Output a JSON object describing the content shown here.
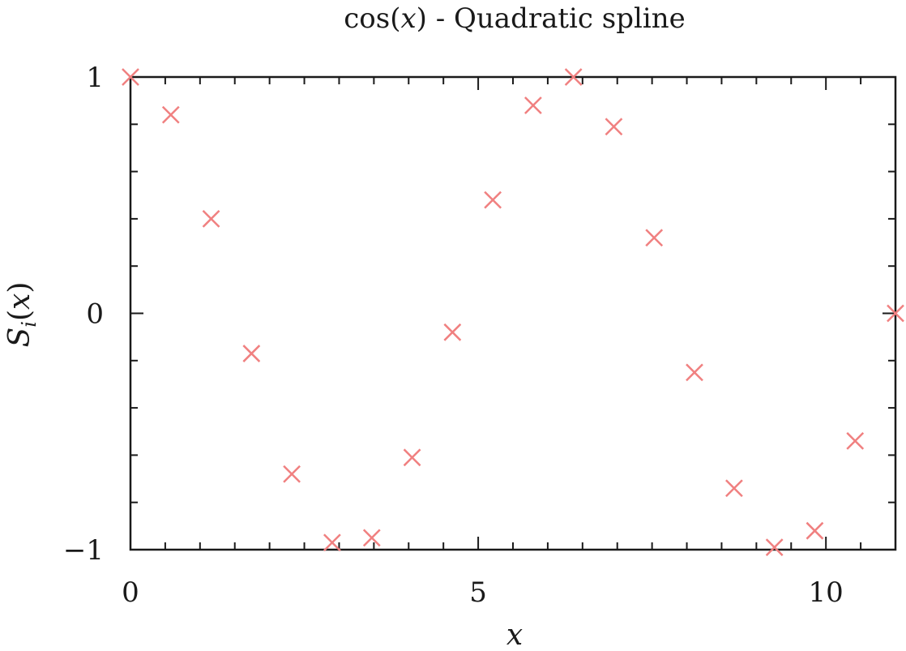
{
  "chart_data": {
    "type": "scatter",
    "title_parts": {
      "pre": "cos(",
      "var": "x",
      "post": ") - Quadratic spline"
    },
    "xlabel": "x",
    "ylabel_parts": {
      "main": "S",
      "sub": "i",
      "open": "(",
      "var": "x",
      "close": ")"
    },
    "xlim": [
      0,
      11
    ],
    "ylim": [
      -1,
      1
    ],
    "xticks": [
      0,
      5,
      10
    ],
    "xtick_labels": [
      "0",
      "5",
      "10"
    ],
    "yticks": [
      1,
      0,
      -1
    ],
    "ytick_labels": [
      "1",
      "0",
      "−1"
    ],
    "x_minor_step": 0.5,
    "y_minor_step": 0.2,
    "grid": false,
    "marker": "x",
    "marker_color": "#f08080",
    "points": [
      {
        "x": 0.0,
        "y": 1.0
      },
      {
        "x": 0.58,
        "y": 0.84
      },
      {
        "x": 1.16,
        "y": 0.4
      },
      {
        "x": 1.74,
        "y": -0.17
      },
      {
        "x": 2.32,
        "y": -0.68
      },
      {
        "x": 2.9,
        "y": -0.97
      },
      {
        "x": 3.47,
        "y": -0.95
      },
      {
        "x": 4.05,
        "y": -0.61
      },
      {
        "x": 4.63,
        "y": -0.08
      },
      {
        "x": 5.21,
        "y": 0.48
      },
      {
        "x": 5.79,
        "y": 0.88
      },
      {
        "x": 6.37,
        "y": 1.0
      },
      {
        "x": 6.95,
        "y": 0.79
      },
      {
        "x": 7.53,
        "y": 0.32
      },
      {
        "x": 8.11,
        "y": -0.25
      },
      {
        "x": 8.68,
        "y": -0.74
      },
      {
        "x": 9.26,
        "y": -0.99
      },
      {
        "x": 9.84,
        "y": -0.92
      },
      {
        "x": 10.42,
        "y": -0.54
      },
      {
        "x": 11.0,
        "y": 0.0
      }
    ]
  }
}
